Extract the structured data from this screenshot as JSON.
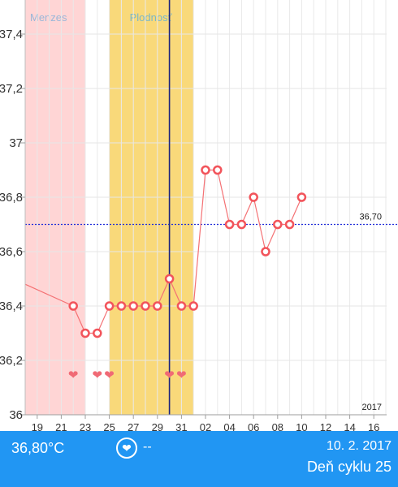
{
  "chart_data": {
    "type": "line",
    "title": "",
    "xlabel": "",
    "ylabel": "",
    "ylim": [
      36,
      37.45
    ],
    "y_ticks": [
      "36",
      "36,2",
      "36,4",
      "36,6",
      "36,8",
      "37",
      "37,2",
      "37,4"
    ],
    "x_tick_labels": [
      "19",
      "21",
      "23",
      "25",
      "27",
      "29",
      "31",
      "02",
      "04",
      "06",
      "08",
      "10",
      "12",
      "14",
      "16"
    ],
    "year_label": "2017",
    "phases": [
      {
        "name": "Menzes",
        "start_day": 0,
        "end_day": 5,
        "color": "#ffd5d5"
      },
      {
        "name": "Plodnosť",
        "start_day": 7,
        "end_day": 14,
        "color": "#f9d97a"
      }
    ],
    "reference_line": {
      "value": 36.7,
      "label": "36,70",
      "color": "#1f2bd8"
    },
    "current_day_marker": {
      "day": 12,
      "color": "#1a237e"
    },
    "series": [
      {
        "points": [
          {
            "day": 4,
            "temp": 36.4
          },
          {
            "day": 5,
            "temp": 36.3
          },
          {
            "day": 6,
            "temp": 36.3
          },
          {
            "day": 7,
            "temp": 36.4
          },
          {
            "day": 8,
            "temp": 36.4
          },
          {
            "day": 9,
            "temp": 36.4
          },
          {
            "day": 10,
            "temp": 36.4
          },
          {
            "day": 11,
            "temp": 36.4
          },
          {
            "day": 12,
            "temp": 36.5
          },
          {
            "day": 13,
            "temp": 36.4
          },
          {
            "day": 14,
            "temp": 36.4
          },
          {
            "day": 15,
            "temp": 36.9
          },
          {
            "day": 16,
            "temp": 36.9
          },
          {
            "day": 17,
            "temp": 36.7
          },
          {
            "day": 18,
            "temp": 36.7
          },
          {
            "day": 19,
            "temp": 36.8
          },
          {
            "day": 20,
            "temp": 36.6
          },
          {
            "day": 21,
            "temp": 36.7
          },
          {
            "day": 22,
            "temp": 36.7
          },
          {
            "day": 23,
            "temp": 36.8
          }
        ],
        "color": "#f47174"
      }
    ],
    "intercourse_days": [
      4,
      6,
      7,
      12,
      13
    ],
    "grid": true
  },
  "bottom_bar": {
    "temperature": "36,80°C",
    "heart_icon": "heart-icon",
    "heart_text": "--",
    "date": "10. 2. 2017",
    "cycle_day": "Deň cyklu 25"
  },
  "colors": {
    "bar_background": "#2196f3",
    "marker": "#f2545b",
    "heart": "#f06a75"
  }
}
